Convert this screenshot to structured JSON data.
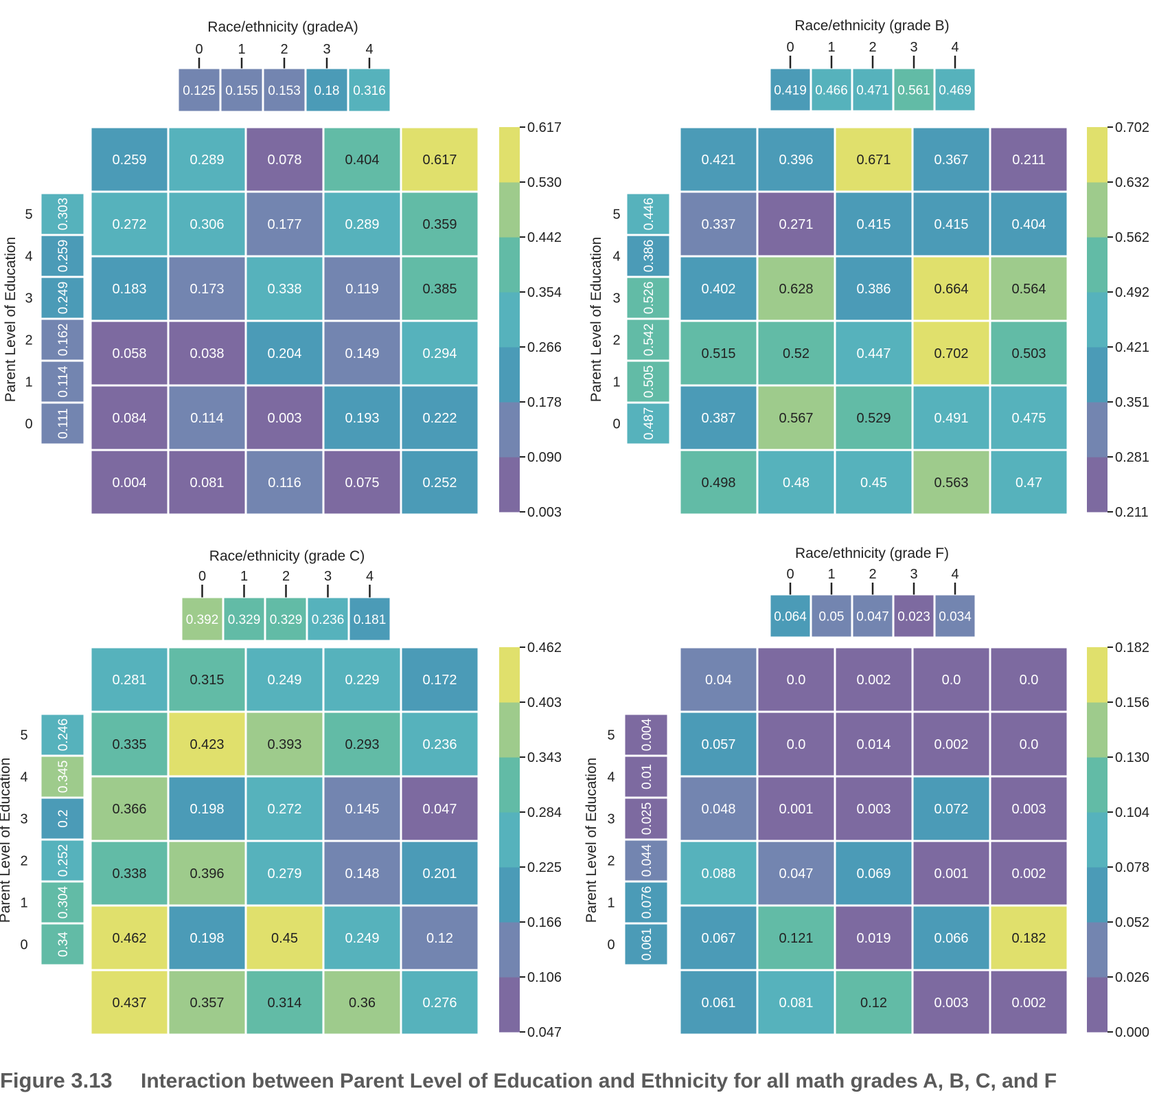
{
  "caption": {
    "label": "Figure 3.13",
    "text": "Interaction between Parent Level of Education and Ethnicity for all math grades A, B, C, and F"
  },
  "colors": {
    "palette": [
      "#7d6aa0",
      "#7385b0",
      "#4b9bb7",
      "#56b2bc",
      "#62bba6",
      "#9ecb8c",
      "#e0e06c"
    ],
    "cell_border": "#ffffff",
    "text_dark": "#222222",
    "text_light": "#ffffff"
  },
  "chart_data": [
    {
      "type": "heatmap",
      "title": "Race/ethnicity (gradeA)",
      "ylabel": "Parent Level of Education",
      "top_ticks": [
        "0",
        "1",
        "2",
        "3",
        "4"
      ],
      "top_values": [
        0.125,
        0.155,
        0.153,
        0.18,
        0.316
      ],
      "side_ticks": [
        "5",
        "4",
        "3",
        "2",
        "1",
        "0"
      ],
      "side_values": [
        0.303,
        0.259,
        0.249,
        0.162,
        0.114,
        0.111
      ],
      "matrix": [
        [
          0.259,
          0.289,
          0.078,
          0.404,
          0.617
        ],
        [
          0.272,
          0.306,
          0.177,
          0.289,
          0.359
        ],
        [
          0.183,
          0.173,
          0.338,
          0.119,
          0.385
        ],
        [
          0.058,
          0.038,
          0.204,
          0.149,
          0.294
        ],
        [
          0.084,
          0.114,
          0.003,
          0.193,
          0.222
        ],
        [
          0.004,
          0.081,
          0.116,
          0.075,
          0.252
        ]
      ],
      "matrix_labels": [
        [
          "0.259",
          "0.289",
          "0.078",
          "0.404",
          "0.617"
        ],
        [
          "0.272",
          "0.306",
          "0.177",
          "0.289",
          "0.359"
        ],
        [
          "0.183",
          "0.173",
          "0.338",
          "0.119",
          "0.385"
        ],
        [
          "0.058",
          "0.038",
          "0.204",
          "0.149",
          "0.294"
        ],
        [
          "0.084",
          "0.114",
          "0.003",
          "0.193",
          "0.222"
        ],
        [
          "0.004",
          "0.081",
          "0.116",
          "0.075",
          "0.252"
        ]
      ],
      "top_labels": [
        "0.125",
        "0.155",
        "0.153",
        "0.18",
        "0.316"
      ],
      "side_labels": [
        "0.303",
        "0.259",
        "0.249",
        "0.162",
        "0.114",
        "0.111"
      ],
      "colorbar": {
        "min": 0.003,
        "max": 0.617,
        "ticks": [
          "0.617",
          "0.530",
          "0.442",
          "0.354",
          "0.266",
          "0.178",
          "0.090",
          "0.003"
        ]
      }
    },
    {
      "type": "heatmap",
      "title": "Race/ethnicity (grade B)",
      "ylabel": "Parent Level of Education",
      "top_ticks": [
        "0",
        "1",
        "2",
        "3",
        "4"
      ],
      "top_values": [
        0.419,
        0.466,
        0.471,
        0.561,
        0.469
      ],
      "side_ticks": [
        "5",
        "4",
        "3",
        "2",
        "1",
        "0"
      ],
      "side_values": [
        0.446,
        0.386,
        0.526,
        0.542,
        0.505,
        0.487
      ],
      "matrix": [
        [
          0.421,
          0.396,
          0.671,
          0.367,
          0.211
        ],
        [
          0.337,
          0.271,
          0.415,
          0.415,
          0.404
        ],
        [
          0.402,
          0.628,
          0.386,
          0.664,
          0.564
        ],
        [
          0.515,
          0.52,
          0.447,
          0.702,
          0.503
        ],
        [
          0.387,
          0.567,
          0.529,
          0.491,
          0.475
        ],
        [
          0.498,
          0.48,
          0.45,
          0.563,
          0.47
        ]
      ],
      "matrix_labels": [
        [
          "0.421",
          "0.396",
          "0.671",
          "0.367",
          "0.211"
        ],
        [
          "0.337",
          "0.271",
          "0.415",
          "0.415",
          "0.404"
        ],
        [
          "0.402",
          "0.628",
          "0.386",
          "0.664",
          "0.564"
        ],
        [
          "0.515",
          "0.52",
          "0.447",
          "0.702",
          "0.503"
        ],
        [
          "0.387",
          "0.567",
          "0.529",
          "0.491",
          "0.475"
        ],
        [
          "0.498",
          "0.48",
          "0.45",
          "0.563",
          "0.47"
        ]
      ],
      "top_labels": [
        "0.419",
        "0.466",
        "0.471",
        "0.561",
        "0.469"
      ],
      "side_labels": [
        "0.446",
        "0.386",
        "0.526",
        "0.542",
        "0.505",
        "0.487"
      ],
      "colorbar": {
        "min": 0.211,
        "max": 0.702,
        "ticks": [
          "0.702",
          "0.632",
          "0.562",
          "0.492",
          "0.421",
          "0.351",
          "0.281",
          "0.211"
        ]
      }
    },
    {
      "type": "heatmap",
      "title": "Race/ethnicity (grade C)",
      "ylabel": "Parent Level of Education",
      "top_ticks": [
        "0",
        "1",
        "2",
        "3",
        "4"
      ],
      "top_values": [
        0.392,
        0.329,
        0.329,
        0.236,
        0.181
      ],
      "side_ticks": [
        "5",
        "4",
        "3",
        "2",
        "1",
        "0"
      ],
      "side_values": [
        0.246,
        0.345,
        0.2,
        0.252,
        0.304,
        0.34
      ],
      "matrix": [
        [
          0.281,
          0.315,
          0.249,
          0.229,
          0.172
        ],
        [
          0.335,
          0.423,
          0.393,
          0.293,
          0.236
        ],
        [
          0.366,
          0.198,
          0.272,
          0.145,
          0.047
        ],
        [
          0.338,
          0.396,
          0.279,
          0.148,
          0.201
        ],
        [
          0.462,
          0.198,
          0.45,
          0.249,
          0.12
        ],
        [
          0.437,
          0.357,
          0.314,
          0.36,
          0.276
        ]
      ],
      "matrix_labels": [
        [
          "0.281",
          "0.315",
          "0.249",
          "0.229",
          "0.172"
        ],
        [
          "0.335",
          "0.423",
          "0.393",
          "0.293",
          "0.236"
        ],
        [
          "0.366",
          "0.198",
          "0.272",
          "0.145",
          "0.047"
        ],
        [
          "0.338",
          "0.396",
          "0.279",
          "0.148",
          "0.201"
        ],
        [
          "0.462",
          "0.198",
          "0.45",
          "0.249",
          "0.12"
        ],
        [
          "0.437",
          "0.357",
          "0.314",
          "0.36",
          "0.276"
        ]
      ],
      "top_labels": [
        "0.392",
        "0.329",
        "0.329",
        "0.236",
        "0.181"
      ],
      "side_labels": [
        "0.246",
        "0.345",
        "0.2",
        "0.252",
        "0.304",
        "0.34"
      ],
      "colorbar": {
        "min": 0.047,
        "max": 0.462,
        "ticks": [
          "0.462",
          "0.403",
          "0.343",
          "0.284",
          "0.225",
          "0.166",
          "0.106",
          "0.047"
        ]
      }
    },
    {
      "type": "heatmap",
      "title": "Race/ethnicity (grade F)",
      "ylabel": "Parent Level of Education",
      "top_ticks": [
        "0",
        "1",
        "2",
        "3",
        "4"
      ],
      "top_values": [
        0.064,
        0.05,
        0.047,
        0.023,
        0.034
      ],
      "side_ticks": [
        "5",
        "4",
        "3",
        "2",
        "1",
        "0"
      ],
      "side_values": [
        0.004,
        0.01,
        0.025,
        0.044,
        0.076,
        0.061
      ],
      "matrix": [
        [
          0.04,
          0.0,
          0.002,
          0.0,
          0.0
        ],
        [
          0.057,
          0.0,
          0.014,
          0.002,
          0.0
        ],
        [
          0.048,
          0.001,
          0.003,
          0.072,
          0.003
        ],
        [
          0.088,
          0.047,
          0.069,
          0.001,
          0.002
        ],
        [
          0.067,
          0.121,
          0.019,
          0.066,
          0.182
        ],
        [
          0.061,
          0.081,
          0.12,
          0.003,
          0.002
        ]
      ],
      "matrix_labels": [
        [
          "0.04",
          "0.0",
          "0.002",
          "0.0",
          "0.0"
        ],
        [
          "0.057",
          "0.0",
          "0.014",
          "0.002",
          "0.0"
        ],
        [
          "0.048",
          "0.001",
          "0.003",
          "0.072",
          "0.003"
        ],
        [
          "0.088",
          "0.047",
          "0.069",
          "0.001",
          "0.002"
        ],
        [
          "0.067",
          "0.121",
          "0.019",
          "0.066",
          "0.182"
        ],
        [
          "0.061",
          "0.081",
          "0.12",
          "0.003",
          "0.002"
        ]
      ],
      "top_labels": [
        "0.064",
        "0.05",
        "0.047",
        "0.023",
        "0.034"
      ],
      "side_labels": [
        "0.004",
        "0.01",
        "0.025",
        "0.044",
        "0.076",
        "0.061"
      ],
      "colorbar": {
        "min": 0.0,
        "max": 0.182,
        "ticks": [
          "0.182",
          "0.156",
          "0.130",
          "0.104",
          "0.078",
          "0.052",
          "0.026",
          "0.000"
        ]
      }
    }
  ]
}
